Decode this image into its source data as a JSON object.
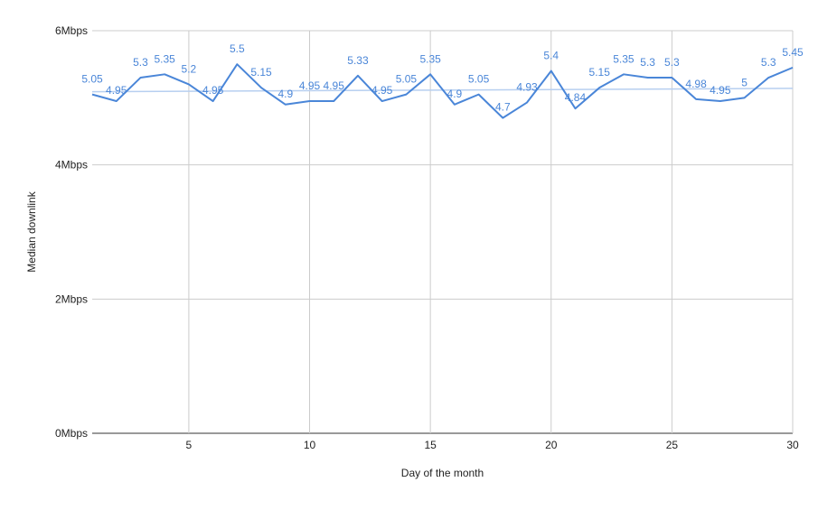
{
  "chart_data": {
    "type": "line",
    "xlabel": "Day of the month",
    "ylabel": "Median downlink",
    "xlim": [
      1,
      30
    ],
    "ylim": [
      0,
      6
    ],
    "x_ticks": [
      5,
      10,
      15,
      20,
      25,
      30
    ],
    "y_ticks": [
      {
        "value": 0,
        "label": "0Mbps"
      },
      {
        "value": 2,
        "label": "2Mbps"
      },
      {
        "value": 4,
        "label": "4Mbps"
      },
      {
        "value": 6,
        "label": "6Mbps"
      }
    ],
    "grid": true,
    "series": [
      {
        "x": [
          1,
          2,
          3,
          4,
          5,
          6,
          7,
          8,
          9,
          10,
          11,
          12,
          13,
          14,
          15,
          16,
          17,
          18,
          19,
          20,
          21,
          22,
          23,
          24,
          25,
          26,
          27,
          28,
          29,
          30
        ],
        "values": [
          5.05,
          4.95,
          5.3,
          5.35,
          5.2,
          4.95,
          5.5,
          5.15,
          4.9,
          4.95,
          4.95,
          5.33,
          4.95,
          5.05,
          5.35,
          4.9,
          5.05,
          4.7,
          4.93,
          5.4,
          4.84,
          5.15,
          5.35,
          5.3,
          5.3,
          4.98,
          4.95,
          5,
          5.3,
          5.45
        ],
        "labels": [
          "5.05",
          "4.95",
          "5.3",
          "5.35",
          "5.2",
          "4.95",
          "5.5",
          "5.15",
          "4.9",
          "4.95",
          "4.95",
          "5.33",
          "4.95",
          "5.05",
          "5.35",
          "4.9",
          "5.05",
          "4.7",
          "4.93",
          "5.4",
          "4.84",
          "5.15",
          "5.35",
          "5.3",
          "5.3",
          "4.98",
          "4.95",
          "5",
          "5.3",
          "5.45"
        ],
        "color": "#4a86d8"
      }
    ],
    "trendline": {
      "type": "linear",
      "start": 5.09,
      "end": 5.14,
      "color": "#b7cff0"
    }
  }
}
